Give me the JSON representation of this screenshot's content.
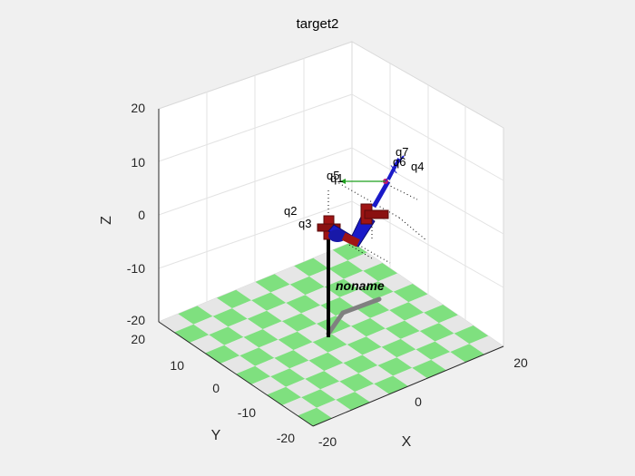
{
  "figure": {
    "title": "target2",
    "xlabel": "X",
    "ylabel": "Y",
    "zlabel": "Z",
    "robot_name": "noname",
    "x_ticks": [
      "-20",
      "0",
      "20"
    ],
    "y_ticks": [
      "20",
      "10",
      "0",
      "-10",
      "-20"
    ],
    "z_ticks": [
      "20",
      "10",
      "0",
      "-10",
      "-20"
    ],
    "joint_labels": [
      "q1",
      "q2",
      "q3",
      "q4",
      "q5",
      "q6",
      "q7"
    ],
    "colors": {
      "background": "#f0f0f0",
      "floor_light": "#e6e6e6",
      "floor_green": "#7fe07f",
      "link_blue": "#1a1ac8",
      "joint_red": "#a01414",
      "pedestal": "#000000",
      "shadow": "#808080"
    }
  }
}
